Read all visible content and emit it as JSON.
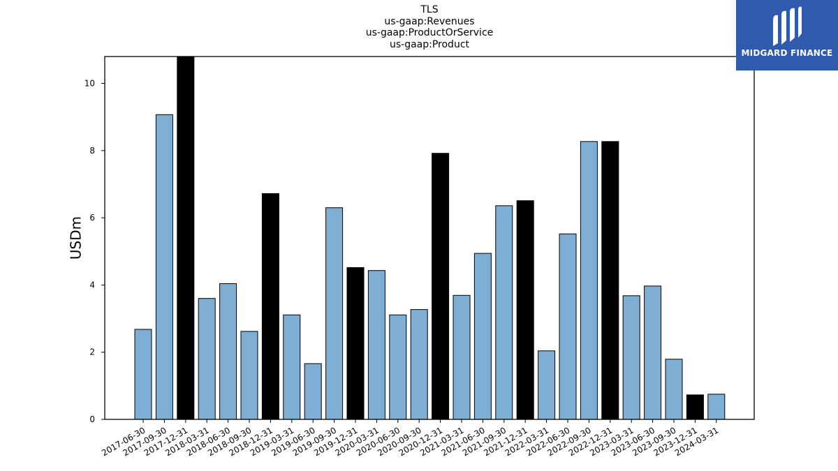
{
  "chart_data": {
    "type": "bar",
    "title_lines": [
      "TLS",
      "us-gaap:Revenues",
      "us-gaap:ProductOrService",
      "us-gaap:Product"
    ],
    "ylabel": "USDm",
    "xlabel": "",
    "ylim": [
      0,
      10.8
    ],
    "yticks": [
      0,
      2,
      4,
      6,
      8,
      10
    ],
    "categories": [
      "2017-06-30",
      "2017-09-30",
      "2017-12-31",
      "2018-03-31",
      "2018-06-30",
      "2018-09-30",
      "2018-12-31",
      "2019-03-31",
      "2019-06-30",
      "2019-09-30",
      "2019-12-31",
      "2020-03-31",
      "2020-06-30",
      "2020-09-30",
      "2020-12-31",
      "2021-03-31",
      "2021-06-30",
      "2021-09-30",
      "2021-12-31",
      "2022-03-31",
      "2022-06-30",
      "2022-09-30",
      "2022-12-31",
      "2023-03-31",
      "2023-06-30",
      "2023-09-30",
      "2023-12-31",
      "2024-03-31"
    ],
    "values": [
      2.68,
      9.07,
      10.8,
      3.6,
      4.04,
      2.62,
      6.72,
      3.11,
      1.66,
      6.3,
      4.52,
      4.43,
      3.11,
      3.27,
      7.92,
      3.69,
      4.94,
      6.36,
      6.51,
      2.04,
      5.52,
      8.27,
      8.27,
      3.68,
      3.97,
      1.79,
      0.73,
      0.75
    ],
    "bar_colors": [
      "blue",
      "blue",
      "black",
      "blue",
      "blue",
      "blue",
      "black",
      "blue",
      "blue",
      "blue",
      "black",
      "blue",
      "blue",
      "blue",
      "black",
      "blue",
      "blue",
      "blue",
      "black",
      "blue",
      "blue",
      "blue",
      "black",
      "blue",
      "blue",
      "blue",
      "black",
      "blue"
    ],
    "colors": {
      "blue": "#7eaed3",
      "black": "#000000"
    },
    "grid": false,
    "legend": "none"
  },
  "logo": {
    "text": "MIDGARD FINANCE",
    "background": "#2f5aad"
  }
}
